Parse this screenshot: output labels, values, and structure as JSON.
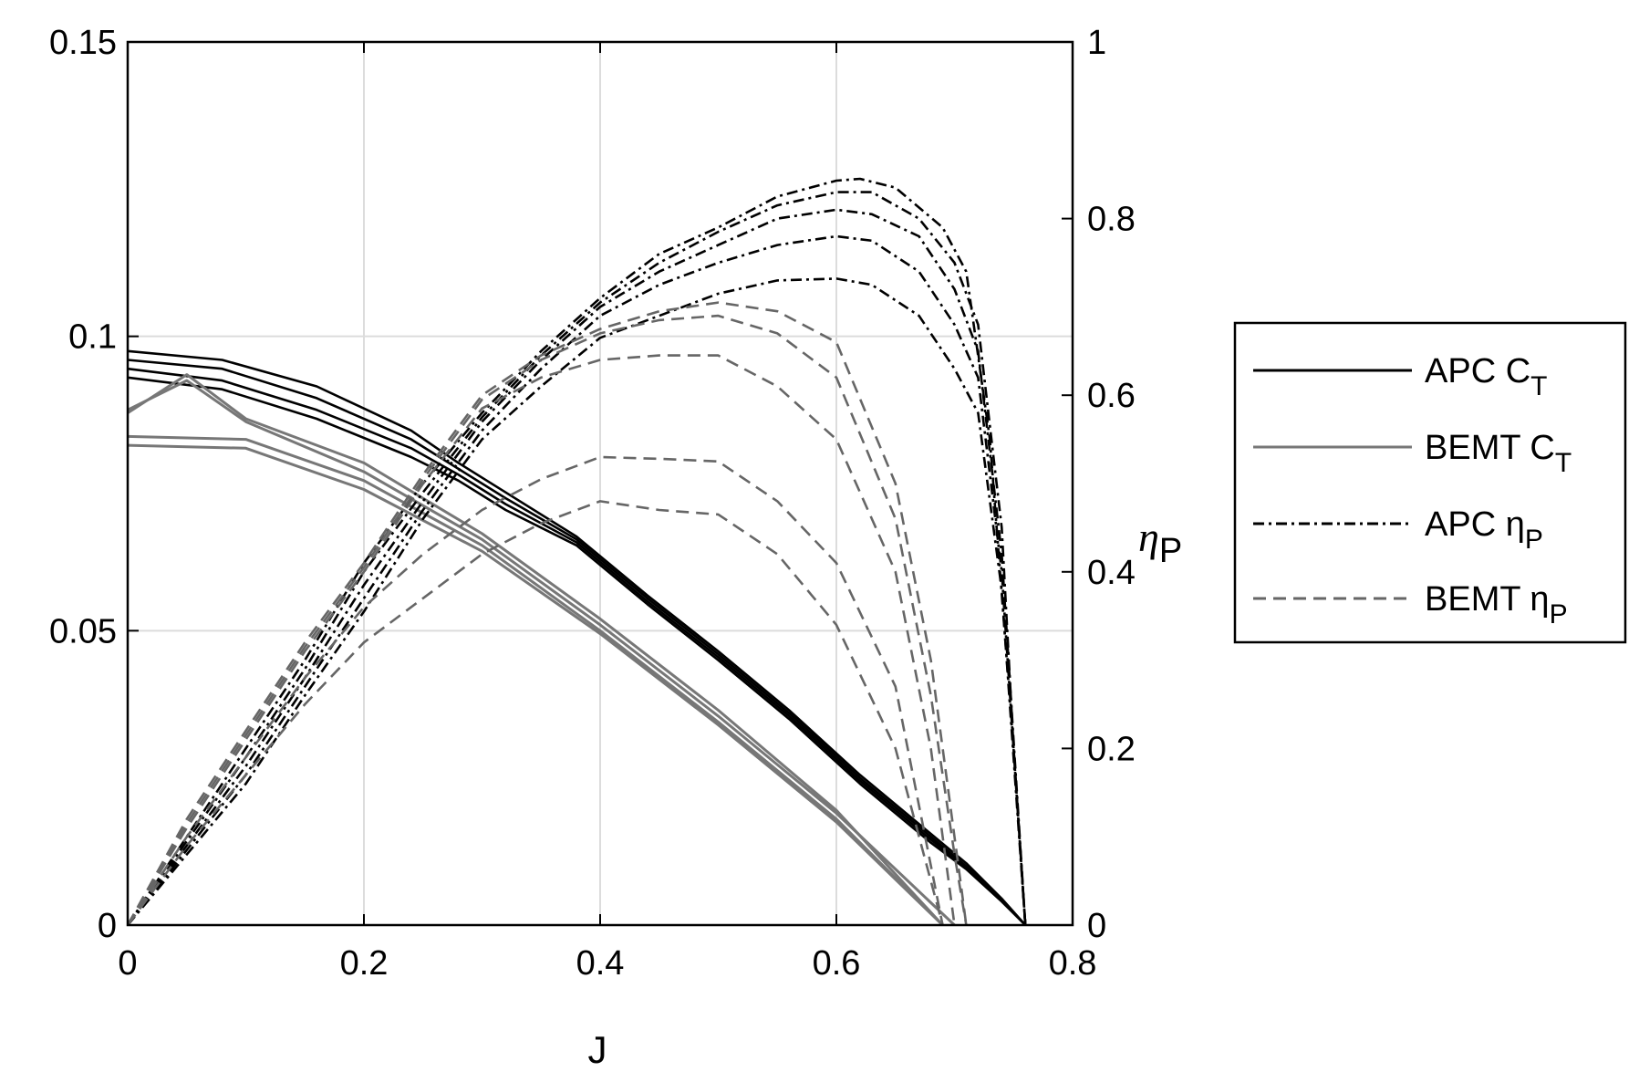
{
  "chart_data": {
    "type": "line",
    "xlabel": "J",
    "ylabel_left": "",
    "ylabel_right": {
      "main": "η",
      "sub": "P"
    },
    "xlim": [
      0,
      0.8
    ],
    "ylim_left": [
      0,
      0.15
    ],
    "ylim_right": [
      0,
      1
    ],
    "xticks": [
      "0",
      "0.2",
      "0.4",
      "0.6",
      "0.8"
    ],
    "yticks_left": [
      "0",
      "0.05",
      "0.1",
      "0.15"
    ],
    "yticks_right": [
      "0",
      "0.2",
      "0.4",
      "0.6",
      "0.8",
      "1"
    ],
    "grid": true,
    "legend_position": "right",
    "legend": [
      {
        "main": "APC C",
        "sub": "T",
        "style": "solid",
        "color": "#000000"
      },
      {
        "main": "BEMT C",
        "sub": "T",
        "style": "solid",
        "color": "#777777"
      },
      {
        "main": "APC η",
        "sub": "P",
        "style": "dashdot",
        "color": "#000000"
      },
      {
        "main": "BEMT η",
        "sub": "P",
        "style": "dashed",
        "color": "#666666"
      }
    ],
    "series": [
      {
        "group": "APC C_T",
        "axis": "left",
        "x": [
          0,
          0.08,
          0.16,
          0.24,
          0.28,
          0.32,
          0.38,
          0.44,
          0.5,
          0.56,
          0.62,
          0.68,
          0.71,
          0.74,
          0.76
        ],
        "y": [
          0.0975,
          0.096,
          0.0915,
          0.084,
          0.0785,
          0.0735,
          0.066,
          0.056,
          0.0465,
          0.0365,
          0.0255,
          0.0155,
          0.0105,
          0.0045,
          0
        ]
      },
      {
        "group": "APC C_T",
        "axis": "left",
        "x": [
          0,
          0.08,
          0.16,
          0.24,
          0.28,
          0.32,
          0.38,
          0.44,
          0.5,
          0.56,
          0.62,
          0.68,
          0.71,
          0.74,
          0.76
        ],
        "y": [
          0.096,
          0.0945,
          0.0895,
          0.0825,
          0.0775,
          0.0725,
          0.0655,
          0.0555,
          0.046,
          0.036,
          0.025,
          0.015,
          0.01,
          0.0043,
          0
        ]
      },
      {
        "group": "APC C_T",
        "axis": "left",
        "x": [
          0,
          0.08,
          0.16,
          0.24,
          0.28,
          0.32,
          0.38,
          0.44,
          0.5,
          0.56,
          0.62,
          0.68,
          0.71,
          0.74,
          0.76
        ],
        "y": [
          0.0945,
          0.0925,
          0.0875,
          0.081,
          0.0765,
          0.0715,
          0.065,
          0.055,
          0.0455,
          0.0355,
          0.0245,
          0.0145,
          0.0098,
          0.0042,
          0
        ]
      },
      {
        "group": "APC C_T",
        "axis": "left",
        "x": [
          0,
          0.08,
          0.16,
          0.24,
          0.28,
          0.32,
          0.38,
          0.44,
          0.5,
          0.56,
          0.62,
          0.68,
          0.71,
          0.74,
          0.76
        ],
        "y": [
          0.093,
          0.091,
          0.086,
          0.0795,
          0.0755,
          0.0705,
          0.0645,
          0.0545,
          0.045,
          0.035,
          0.024,
          0.014,
          0.0095,
          0.004,
          0
        ]
      },
      {
        "group": "BEMT C_T",
        "axis": "left",
        "x": [
          0,
          0.05,
          0.1,
          0.2,
          0.3,
          0.4,
          0.5,
          0.6,
          0.69
        ],
        "y": [
          0.087,
          0.0935,
          0.086,
          0.0785,
          0.0665,
          0.052,
          0.0365,
          0.0195,
          0
        ]
      },
      {
        "group": "BEMT C_T",
        "axis": "left",
        "x": [
          0,
          0.05,
          0.1,
          0.2,
          0.3,
          0.4,
          0.5,
          0.6,
          0.7
        ],
        "y": [
          0.0875,
          0.0925,
          0.0855,
          0.077,
          0.0655,
          0.051,
          0.0355,
          0.019,
          0
        ]
      },
      {
        "group": "BEMT C_T",
        "axis": "left",
        "x": [
          0,
          0.1,
          0.2,
          0.3,
          0.4,
          0.5,
          0.6,
          0.69
        ],
        "y": [
          0.083,
          0.0825,
          0.0755,
          0.0645,
          0.05,
          0.0345,
          0.018,
          0
        ]
      },
      {
        "group": "BEMT C_T",
        "axis": "left",
        "x": [
          0,
          0.1,
          0.2,
          0.3,
          0.4,
          0.5,
          0.6,
          0.69
        ],
        "y": [
          0.0815,
          0.081,
          0.074,
          0.0635,
          0.0495,
          0.034,
          0.0175,
          0
        ]
      },
      {
        "group": "APC η_P",
        "axis": "right",
        "x": [
          0,
          0.05,
          0.1,
          0.15,
          0.2,
          0.25,
          0.3,
          0.35,
          0.4,
          0.45,
          0.5,
          0.55,
          0.6,
          0.62,
          0.65,
          0.69,
          0.71,
          0.73,
          0.75,
          0.76
        ],
        "y": [
          0,
          0.1,
          0.2,
          0.3,
          0.41,
          0.5,
          0.58,
          0.65,
          0.71,
          0.76,
          0.79,
          0.825,
          0.843,
          0.845,
          0.835,
          0.79,
          0.74,
          0.55,
          0.2,
          0
        ]
      },
      {
        "group": "APC η_P",
        "axis": "right",
        "x": [
          0,
          0.05,
          0.1,
          0.15,
          0.2,
          0.25,
          0.3,
          0.35,
          0.4,
          0.45,
          0.5,
          0.55,
          0.6,
          0.63,
          0.67,
          0.7,
          0.72,
          0.74,
          0.75,
          0.76
        ],
        "y": [
          0,
          0.095,
          0.19,
          0.29,
          0.4,
          0.49,
          0.575,
          0.645,
          0.705,
          0.75,
          0.785,
          0.815,
          0.83,
          0.83,
          0.8,
          0.75,
          0.68,
          0.45,
          0.2,
          0
        ]
      },
      {
        "group": "APC η_P",
        "axis": "right",
        "x": [
          0,
          0.05,
          0.1,
          0.15,
          0.2,
          0.25,
          0.3,
          0.35,
          0.4,
          0.45,
          0.5,
          0.55,
          0.6,
          0.63,
          0.67,
          0.7,
          0.72,
          0.74,
          0.76
        ],
        "y": [
          0,
          0.09,
          0.18,
          0.28,
          0.385,
          0.48,
          0.57,
          0.64,
          0.7,
          0.74,
          0.77,
          0.8,
          0.81,
          0.805,
          0.78,
          0.72,
          0.65,
          0.42,
          0
        ]
      },
      {
        "group": "APC η_P",
        "axis": "right",
        "x": [
          0,
          0.05,
          0.1,
          0.15,
          0.2,
          0.25,
          0.3,
          0.35,
          0.4,
          0.45,
          0.5,
          0.55,
          0.6,
          0.63,
          0.67,
          0.7,
          0.72,
          0.74,
          0.76
        ],
        "y": [
          0,
          0.085,
          0.17,
          0.27,
          0.37,
          0.47,
          0.56,
          0.63,
          0.69,
          0.725,
          0.75,
          0.77,
          0.78,
          0.775,
          0.74,
          0.68,
          0.62,
          0.4,
          0
        ]
      },
      {
        "group": "APC η_P",
        "axis": "right",
        "x": [
          0,
          0.05,
          0.1,
          0.15,
          0.2,
          0.25,
          0.3,
          0.35,
          0.4,
          0.45,
          0.5,
          0.55,
          0.6,
          0.63,
          0.67,
          0.7,
          0.72,
          0.74,
          0.76
        ],
        "y": [
          0,
          0.08,
          0.16,
          0.26,
          0.355,
          0.46,
          0.55,
          0.61,
          0.665,
          0.69,
          0.715,
          0.73,
          0.732,
          0.725,
          0.69,
          0.63,
          0.58,
          0.38,
          0
        ]
      },
      {
        "group": "BEMT η_P",
        "axis": "right",
        "x": [
          0,
          0.05,
          0.1,
          0.15,
          0.2,
          0.25,
          0.3,
          0.35,
          0.4,
          0.45,
          0.5,
          0.55,
          0.6,
          0.65,
          0.68,
          0.7,
          0.705,
          0.71
        ],
        "y": [
          0,
          0.12,
          0.22,
          0.32,
          0.41,
          0.51,
          0.6,
          0.645,
          0.675,
          0.695,
          0.705,
          0.695,
          0.66,
          0.5,
          0.3,
          0.1,
          0.05,
          0
        ]
      },
      {
        "group": "BEMT η_P",
        "axis": "right",
        "x": [
          0,
          0.05,
          0.1,
          0.15,
          0.2,
          0.25,
          0.3,
          0.35,
          0.4,
          0.45,
          0.5,
          0.55,
          0.6,
          0.65,
          0.68,
          0.7,
          0.71
        ],
        "y": [
          0,
          0.115,
          0.215,
          0.315,
          0.405,
          0.505,
          0.595,
          0.64,
          0.67,
          0.685,
          0.69,
          0.67,
          0.62,
          0.46,
          0.26,
          0.08,
          0
        ]
      },
      {
        "group": "BEMT η_P",
        "axis": "right",
        "x": [
          0,
          0.05,
          0.1,
          0.15,
          0.2,
          0.25,
          0.3,
          0.35,
          0.4,
          0.45,
          0.5,
          0.55,
          0.6,
          0.65,
          0.68,
          0.7
        ],
        "y": [
          0,
          0.11,
          0.21,
          0.31,
          0.4,
          0.5,
          0.585,
          0.62,
          0.64,
          0.645,
          0.645,
          0.61,
          0.55,
          0.4,
          0.2,
          0
        ]
      },
      {
        "group": "BEMT η_P",
        "axis": "right",
        "x": [
          0,
          0.05,
          0.1,
          0.15,
          0.2,
          0.25,
          0.3,
          0.35,
          0.4,
          0.45,
          0.5,
          0.55,
          0.6,
          0.65,
          0.69
        ],
        "y": [
          0,
          0.1,
          0.19,
          0.28,
          0.36,
          0.42,
          0.47,
          0.505,
          0.53,
          0.528,
          0.525,
          0.48,
          0.41,
          0.27,
          0
        ]
      },
      {
        "group": "BEMT η_P",
        "axis": "right",
        "x": [
          0,
          0.05,
          0.1,
          0.15,
          0.2,
          0.25,
          0.3,
          0.35,
          0.4,
          0.45,
          0.5,
          0.55,
          0.6,
          0.65,
          0.69
        ],
        "y": [
          0,
          0.09,
          0.17,
          0.25,
          0.32,
          0.37,
          0.42,
          0.455,
          0.48,
          0.47,
          0.465,
          0.42,
          0.34,
          0.2,
          0
        ]
      }
    ]
  }
}
